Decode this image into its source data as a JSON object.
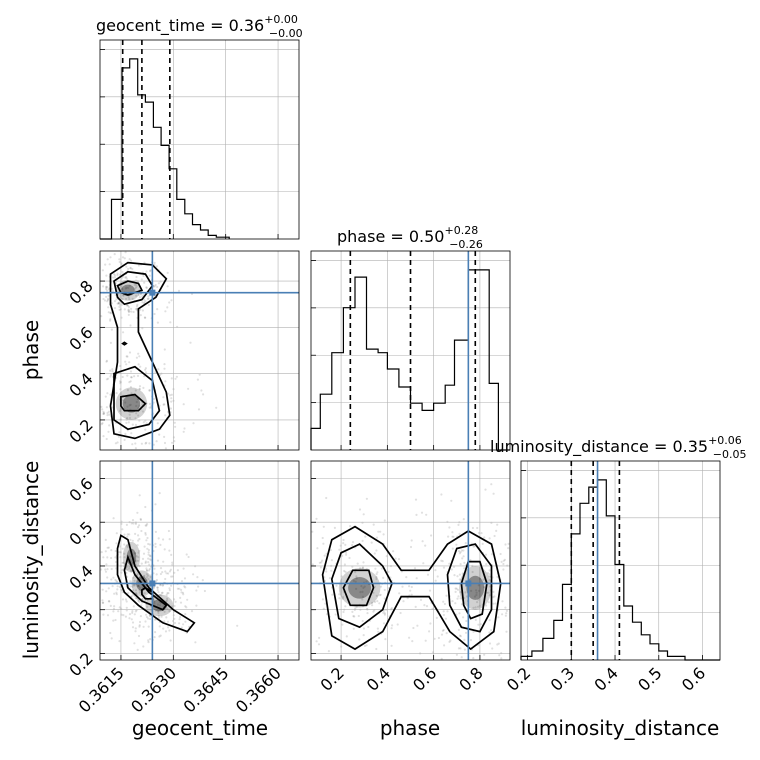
{
  "chart_data": {
    "type": "corner",
    "parameters": [
      "geocent_time",
      "phase",
      "luminosity_distance"
    ],
    "truths": {
      "geocent_time": 0.3624,
      "phase": 0.75,
      "luminosity_distance": 0.36
    },
    "titles": [
      {
        "param": "geocent_time",
        "text": "geocent_time = 0.36",
        "sup": "+0.00",
        "sub": "−0.00"
      },
      {
        "param": "phase",
        "text": "phase = 0.50",
        "sup": "+0.28",
        "sub": "−0.26"
      },
      {
        "param": "luminosity_distance",
        "text": "luminosity_distance = 0.35",
        "sup": "+0.06",
        "sub": "−0.05"
      }
    ],
    "axis_labels": {
      "x": [
        "geocent_time",
        "phase",
        "luminosity_distance"
      ],
      "y": [
        "phase",
        "luminosity_distance"
      ]
    },
    "ranges": {
      "geocent_time": [
        0.3609,
        0.3666
      ],
      "phase": [
        0.07,
        0.93
      ],
      "luminosity_distance": [
        0.185,
        0.64
      ]
    },
    "ticks": {
      "geocent_time": [
        "0.3615",
        "0.3630",
        "0.3645",
        "0.3660"
      ],
      "phase": [
        "0.2",
        "0.4",
        "0.6",
        "0.8"
      ],
      "luminosity_distance": [
        "0.2",
        "0.3",
        "0.4",
        "0.5",
        "0.6"
      ]
    },
    "quantiles": {
      "geocent_time": [
        0.36155,
        0.3621,
        0.3629
      ],
      "phase": [
        0.24,
        0.5,
        0.78
      ],
      "luminosity_distance": [
        0.3,
        0.35,
        0.41
      ]
    },
    "histograms": {
      "geocent_time": [
        {
          "x0": 0.3609,
          "x1": 0.36123,
          "h": 0.0
        },
        {
          "x0": 0.36123,
          "x1": 0.36153,
          "h": 0.22
        },
        {
          "x0": 0.36153,
          "x1": 0.36175,
          "h": 0.95
        },
        {
          "x0": 0.36175,
          "x1": 0.36198,
          "h": 1.0
        },
        {
          "x0": 0.36198,
          "x1": 0.3622,
          "h": 0.8
        },
        {
          "x0": 0.3622,
          "x1": 0.36243,
          "h": 0.76
        },
        {
          "x0": 0.36243,
          "x1": 0.36265,
          "h": 0.62
        },
        {
          "x0": 0.36265,
          "x1": 0.36288,
          "h": 0.52
        },
        {
          "x0": 0.36288,
          "x1": 0.3631,
          "h": 0.39
        },
        {
          "x0": 0.3631,
          "x1": 0.36333,
          "h": 0.22
        },
        {
          "x0": 0.36333,
          "x1": 0.36355,
          "h": 0.14
        },
        {
          "x0": 0.36355,
          "x1": 0.36378,
          "h": 0.08
        },
        {
          "x0": 0.36378,
          "x1": 0.364,
          "h": 0.05
        },
        {
          "x0": 0.364,
          "x1": 0.36423,
          "h": 0.02
        },
        {
          "x0": 0.36423,
          "x1": 0.3646,
          "h": 0.01
        }
      ],
      "phase": [
        {
          "x0": 0.07,
          "x1": 0.11,
          "h": 0.12
        },
        {
          "x0": 0.11,
          "x1": 0.16,
          "h": 0.31
        },
        {
          "x0": 0.16,
          "x1": 0.21,
          "h": 0.54
        },
        {
          "x0": 0.21,
          "x1": 0.26,
          "h": 0.79
        },
        {
          "x0": 0.26,
          "x1": 0.31,
          "h": 0.96
        },
        {
          "x0": 0.31,
          "x1": 0.36,
          "h": 0.56
        },
        {
          "x0": 0.36,
          "x1": 0.4,
          "h": 0.54
        },
        {
          "x0": 0.4,
          "x1": 0.45,
          "h": 0.45
        },
        {
          "x0": 0.45,
          "x1": 0.5,
          "h": 0.35
        },
        {
          "x0": 0.5,
          "x1": 0.55,
          "h": 0.26
        },
        {
          "x0": 0.55,
          "x1": 0.6,
          "h": 0.22
        },
        {
          "x0": 0.6,
          "x1": 0.65,
          "h": 0.26
        },
        {
          "x0": 0.65,
          "x1": 0.69,
          "h": 0.36
        },
        {
          "x0": 0.69,
          "x1": 0.75,
          "h": 0.61
        },
        {
          "x0": 0.75,
          "x1": 0.79,
          "h": 1.0
        },
        {
          "x0": 0.79,
          "x1": 0.84,
          "h": 1.0
        },
        {
          "x0": 0.84,
          "x1": 0.88,
          "h": 0.37
        },
        {
          "x0": 0.88,
          "x1": 0.93,
          "h": 0.0
        }
      ],
      "luminosity_distance": [
        {
          "x0": 0.185,
          "x1": 0.21,
          "h": 0.02
        },
        {
          "x0": 0.21,
          "x1": 0.235,
          "h": 0.05
        },
        {
          "x0": 0.235,
          "x1": 0.26,
          "h": 0.12
        },
        {
          "x0": 0.26,
          "x1": 0.28,
          "h": 0.22
        },
        {
          "x0": 0.28,
          "x1": 0.3,
          "h": 0.42
        },
        {
          "x0": 0.3,
          "x1": 0.32,
          "h": 0.7
        },
        {
          "x0": 0.32,
          "x1": 0.34,
          "h": 0.87
        },
        {
          "x0": 0.34,
          "x1": 0.36,
          "h": 0.96
        },
        {
          "x0": 0.36,
          "x1": 0.38,
          "h": 1.0
        },
        {
          "x0": 0.38,
          "x1": 0.4,
          "h": 0.8
        },
        {
          "x0": 0.4,
          "x1": 0.42,
          "h": 0.53
        },
        {
          "x0": 0.42,
          "x1": 0.44,
          "h": 0.3
        },
        {
          "x0": 0.44,
          "x1": 0.46,
          "h": 0.21
        },
        {
          "x0": 0.46,
          "x1": 0.48,
          "h": 0.14
        },
        {
          "x0": 0.48,
          "x1": 0.5,
          "h": 0.09
        },
        {
          "x0": 0.5,
          "x1": 0.52,
          "h": 0.05
        },
        {
          "x0": 0.52,
          "x1": 0.56,
          "h": 0.02
        },
        {
          "x0": 0.56,
          "x1": 0.64,
          "h": 0.0
        }
      ]
    },
    "density_blobs": {
      "geocent_time__phase": [
        {
          "x": 0.3617,
          "y": 0.76,
          "sx": 0.00035,
          "sy": 0.045,
          "w": 0.5
        },
        {
          "x": 0.3618,
          "y": 0.27,
          "sx": 0.00045,
          "sy": 0.07,
          "w": 0.5
        }
      ],
      "geocent_time__luminosity_distance": [
        {
          "x": 0.3618,
          "y": 0.42,
          "sx": 0.00025,
          "sy": 0.035,
          "w": 0.3
        },
        {
          "x": 0.3621,
          "y": 0.36,
          "sx": 0.0003,
          "sy": 0.03,
          "w": 0.4
        },
        {
          "x": 0.3626,
          "y": 0.31,
          "sx": 0.0004,
          "sy": 0.025,
          "w": 0.3
        }
      ],
      "phase__luminosity_distance": [
        {
          "x": 0.28,
          "y": 0.35,
          "sx": 0.09,
          "sy": 0.045,
          "w": 0.5
        },
        {
          "x": 0.78,
          "y": 0.35,
          "sx": 0.07,
          "sy": 0.05,
          "w": 0.5
        }
      ]
    },
    "contours": {
      "geocent_time__phase": [
        [
          [
            0.3612,
            0.83
          ],
          [
            0.3617,
            0.88
          ],
          [
            0.3624,
            0.87
          ],
          [
            0.3628,
            0.81
          ],
          [
            0.3625,
            0.73
          ],
          [
            0.362,
            0.68
          ],
          [
            0.362,
            0.58
          ],
          [
            0.3624,
            0.45
          ],
          [
            0.3628,
            0.32
          ],
          [
            0.3629,
            0.22
          ],
          [
            0.3626,
            0.16
          ],
          [
            0.3619,
            0.12
          ],
          [
            0.3613,
            0.14
          ],
          [
            0.3612,
            0.26
          ],
          [
            0.3614,
            0.45
          ],
          [
            0.3614,
            0.6
          ],
          [
            0.3612,
            0.7
          ]
        ],
        [
          [
            0.3613,
            0.8
          ],
          [
            0.3617,
            0.84
          ],
          [
            0.3622,
            0.83
          ],
          [
            0.3624,
            0.78
          ],
          [
            0.3621,
            0.72
          ],
          [
            0.3616,
            0.7
          ],
          [
            0.3614,
            0.73
          ]
        ],
        [
          [
            0.3614,
            0.78
          ],
          [
            0.3617,
            0.8
          ],
          [
            0.362,
            0.79
          ],
          [
            0.3621,
            0.76
          ],
          [
            0.3617,
            0.74
          ],
          [
            0.3615,
            0.75
          ]
        ],
        [
          [
            0.3613,
            0.4
          ],
          [
            0.3619,
            0.43
          ],
          [
            0.3624,
            0.37
          ],
          [
            0.3626,
            0.24
          ],
          [
            0.3623,
            0.18
          ],
          [
            0.3617,
            0.16
          ],
          [
            0.3613,
            0.2
          ],
          [
            0.3613,
            0.3
          ]
        ],
        [
          [
            0.3615,
            0.3
          ],
          [
            0.3619,
            0.31
          ],
          [
            0.3622,
            0.27
          ],
          [
            0.362,
            0.24
          ],
          [
            0.3616,
            0.24
          ],
          [
            0.3615,
            0.26
          ]
        ],
        [
          [
            0.36155,
            0.53
          ],
          [
            0.3616,
            0.535
          ],
          [
            0.36165,
            0.53
          ],
          [
            0.3616,
            0.525
          ]
        ]
      ],
      "geocent_time__luminosity_distance": [
        [
          [
            0.3614,
            0.44
          ],
          [
            0.3615,
            0.47
          ],
          [
            0.3617,
            0.46
          ],
          [
            0.3619,
            0.4
          ],
          [
            0.3623,
            0.35
          ],
          [
            0.363,
            0.3
          ],
          [
            0.3636,
            0.27
          ],
          [
            0.3634,
            0.25
          ],
          [
            0.3627,
            0.27
          ],
          [
            0.362,
            0.31
          ],
          [
            0.3616,
            0.34
          ],
          [
            0.3614,
            0.38
          ]
        ],
        [
          [
            0.3616,
            0.39
          ],
          [
            0.3617,
            0.42
          ],
          [
            0.3619,
            0.38
          ],
          [
            0.3623,
            0.34
          ],
          [
            0.3628,
            0.31
          ],
          [
            0.3627,
            0.3
          ],
          [
            0.3621,
            0.32
          ],
          [
            0.3617,
            0.35
          ]
        ],
        [
          [
            0.3621,
            0.345
          ],
          [
            0.3622,
            0.35
          ],
          [
            0.3624,
            0.34
          ],
          [
            0.3624,
            0.325
          ],
          [
            0.3622,
            0.325
          ],
          [
            0.3621,
            0.335
          ]
        ]
      ],
      "phase__luminosity_distance": [
        [
          [
            0.12,
            0.38
          ],
          [
            0.16,
            0.46
          ],
          [
            0.26,
            0.49
          ],
          [
            0.38,
            0.45
          ],
          [
            0.46,
            0.39
          ],
          [
            0.58,
            0.39
          ],
          [
            0.66,
            0.45
          ],
          [
            0.75,
            0.48
          ],
          [
            0.85,
            0.45
          ],
          [
            0.89,
            0.36
          ],
          [
            0.86,
            0.25
          ],
          [
            0.76,
            0.21
          ],
          [
            0.67,
            0.25
          ],
          [
            0.58,
            0.33
          ],
          [
            0.46,
            0.33
          ],
          [
            0.38,
            0.25
          ],
          [
            0.26,
            0.21
          ],
          [
            0.16,
            0.24
          ]
        ],
        [
          [
            0.16,
            0.37
          ],
          [
            0.2,
            0.43
          ],
          [
            0.28,
            0.45
          ],
          [
            0.38,
            0.4
          ],
          [
            0.42,
            0.36
          ],
          [
            0.38,
            0.3
          ],
          [
            0.28,
            0.26
          ],
          [
            0.19,
            0.28
          ]
        ],
        [
          [
            0.66,
            0.38
          ],
          [
            0.7,
            0.44
          ],
          [
            0.78,
            0.45
          ],
          [
            0.85,
            0.4
          ],
          [
            0.85,
            0.3
          ],
          [
            0.8,
            0.25
          ],
          [
            0.72,
            0.26
          ],
          [
            0.67,
            0.31
          ]
        ],
        [
          [
            0.21,
            0.35
          ],
          [
            0.25,
            0.39
          ],
          [
            0.32,
            0.39
          ],
          [
            0.34,
            0.35
          ],
          [
            0.31,
            0.31
          ],
          [
            0.24,
            0.31
          ]
        ],
        [
          [
            0.72,
            0.36
          ],
          [
            0.75,
            0.41
          ],
          [
            0.8,
            0.41
          ],
          [
            0.83,
            0.36
          ],
          [
            0.81,
            0.29
          ],
          [
            0.76,
            0.28
          ],
          [
            0.73,
            0.31
          ]
        ]
      ]
    }
  }
}
